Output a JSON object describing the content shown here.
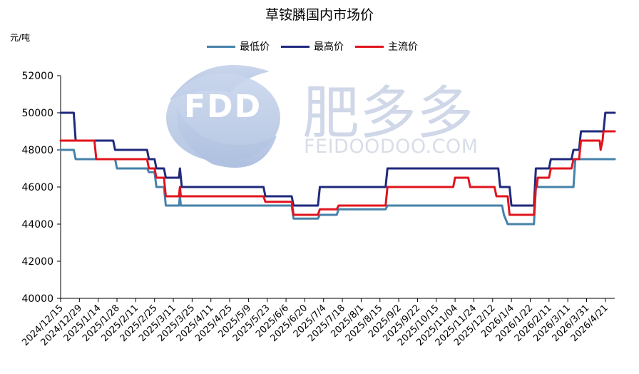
{
  "chart_data": {
    "type": "line",
    "title": "草铵膦国内市场价",
    "unit": "元/吨",
    "ylim": [
      40000,
      52000
    ],
    "yticks": [
      40000,
      42000,
      44000,
      46000,
      48000,
      50000,
      52000
    ],
    "x_ticks": [
      "2024/12/15",
      "2024/12/29",
      "2025/1/14",
      "2025/1/28",
      "2025/2/11",
      "2025/2/25",
      "2025/3/11",
      "2025/3/25",
      "2025/4/11",
      "2025/4/25",
      "2025/5/9",
      "2025/5/23",
      "2025/6/6",
      "2025/6/20",
      "2025/7/4",
      "2025/7/18",
      "2025/8/1",
      "2025/8/15",
      "2025/9/2",
      "2025/9/22",
      "2025/10/15",
      "2025/11/04",
      "2025/11/24",
      "2025/12/12",
      "2026/1/4",
      "2026/1/22",
      "2026/2/11",
      "2026/3/11",
      "2026/3/31",
      "2026/4/21"
    ],
    "x_range": [
      0,
      29.5
    ],
    "legend_position": "top-center",
    "grid": false,
    "series": [
      {
        "name": "最低价",
        "color": "#4682a9",
        "points": [
          [
            0,
            48000
          ],
          [
            0.7,
            48000
          ],
          [
            0.8,
            47500
          ],
          [
            2.9,
            47500
          ],
          [
            3.0,
            47000
          ],
          [
            4.6,
            47000
          ],
          [
            4.7,
            46800
          ],
          [
            5.0,
            46800
          ],
          [
            5.1,
            46000
          ],
          [
            5.5,
            46000
          ],
          [
            5.6,
            45000
          ],
          [
            6.3,
            45000
          ],
          [
            6.35,
            45500
          ],
          [
            6.4,
            45000
          ],
          [
            12.3,
            45000
          ],
          [
            12.4,
            44300
          ],
          [
            13.7,
            44300
          ],
          [
            13.8,
            44500
          ],
          [
            14.7,
            44500
          ],
          [
            14.8,
            44800
          ],
          [
            17.3,
            44800
          ],
          [
            17.4,
            45000
          ],
          [
            23.5,
            45000
          ],
          [
            23.6,
            44500
          ],
          [
            23.8,
            44000
          ],
          [
            25.2,
            44000
          ],
          [
            25.3,
            46000
          ],
          [
            27.3,
            46000
          ],
          [
            27.4,
            47500
          ],
          [
            29.5,
            47500
          ]
        ]
      },
      {
        "name": "最高价",
        "color": "#1f2a7c",
        "points": [
          [
            0,
            50000
          ],
          [
            0.7,
            50000
          ],
          [
            0.8,
            48500
          ],
          [
            2.8,
            48500
          ],
          [
            2.9,
            48000
          ],
          [
            4.6,
            48000
          ],
          [
            4.7,
            47500
          ],
          [
            5.0,
            47500
          ],
          [
            5.1,
            47000
          ],
          [
            5.5,
            47000
          ],
          [
            5.6,
            46500
          ],
          [
            6.3,
            46500
          ],
          [
            6.35,
            47000
          ],
          [
            6.45,
            46000
          ],
          [
            10.8,
            46000
          ],
          [
            10.9,
            45500
          ],
          [
            12.3,
            45500
          ],
          [
            12.4,
            45000
          ],
          [
            13.7,
            45000
          ],
          [
            13.8,
            46000
          ],
          [
            17.3,
            46000
          ],
          [
            17.4,
            47000
          ],
          [
            23.3,
            47000
          ],
          [
            23.4,
            46000
          ],
          [
            23.9,
            46000
          ],
          [
            24.0,
            45000
          ],
          [
            25.2,
            45000
          ],
          [
            25.3,
            47000
          ],
          [
            26.0,
            47000
          ],
          [
            26.1,
            47500
          ],
          [
            27.2,
            47500
          ],
          [
            27.3,
            48000
          ],
          [
            27.6,
            48000
          ],
          [
            27.7,
            49000
          ],
          [
            28.9,
            49000
          ],
          [
            29.0,
            50000
          ],
          [
            29.5,
            50000
          ]
        ]
      },
      {
        "name": "主流价",
        "color": "#e0141e",
        "points": [
          [
            0,
            48500
          ],
          [
            1.8,
            48500
          ],
          [
            1.9,
            47500
          ],
          [
            4.6,
            47500
          ],
          [
            4.7,
            47000
          ],
          [
            5.0,
            47000
          ],
          [
            5.1,
            46500
          ],
          [
            5.5,
            46500
          ],
          [
            5.6,
            45500
          ],
          [
            6.3,
            45500
          ],
          [
            6.35,
            46000
          ],
          [
            6.4,
            45500
          ],
          [
            10.8,
            45500
          ],
          [
            10.9,
            45200
          ],
          [
            12.3,
            45200
          ],
          [
            12.4,
            44500
          ],
          [
            13.7,
            44500
          ],
          [
            13.8,
            44800
          ],
          [
            14.7,
            44800
          ],
          [
            14.8,
            45000
          ],
          [
            17.3,
            45000
          ],
          [
            17.4,
            46000
          ],
          [
            20.9,
            46000
          ],
          [
            21.0,
            46500
          ],
          [
            21.7,
            46500
          ],
          [
            21.8,
            46000
          ],
          [
            23.1,
            46000
          ],
          [
            23.2,
            45500
          ],
          [
            23.8,
            45500
          ],
          [
            23.9,
            44500
          ],
          [
            25.2,
            44500
          ],
          [
            25.3,
            46000
          ],
          [
            25.35,
            46000
          ],
          [
            25.4,
            46500
          ],
          [
            26.0,
            46500
          ],
          [
            26.1,
            47000
          ],
          [
            27.2,
            47000
          ],
          [
            27.3,
            47500
          ],
          [
            27.6,
            47500
          ],
          [
            27.7,
            48500
          ],
          [
            28.7,
            48500
          ],
          [
            28.75,
            48000
          ],
          [
            28.85,
            48500
          ],
          [
            28.9,
            49000
          ],
          [
            29.5,
            49000
          ]
        ]
      }
    ]
  },
  "watermark": {
    "logo_text": "FDD",
    "cn_text": "肥多多",
    "en_text": "FEIDOODOO.COM"
  }
}
